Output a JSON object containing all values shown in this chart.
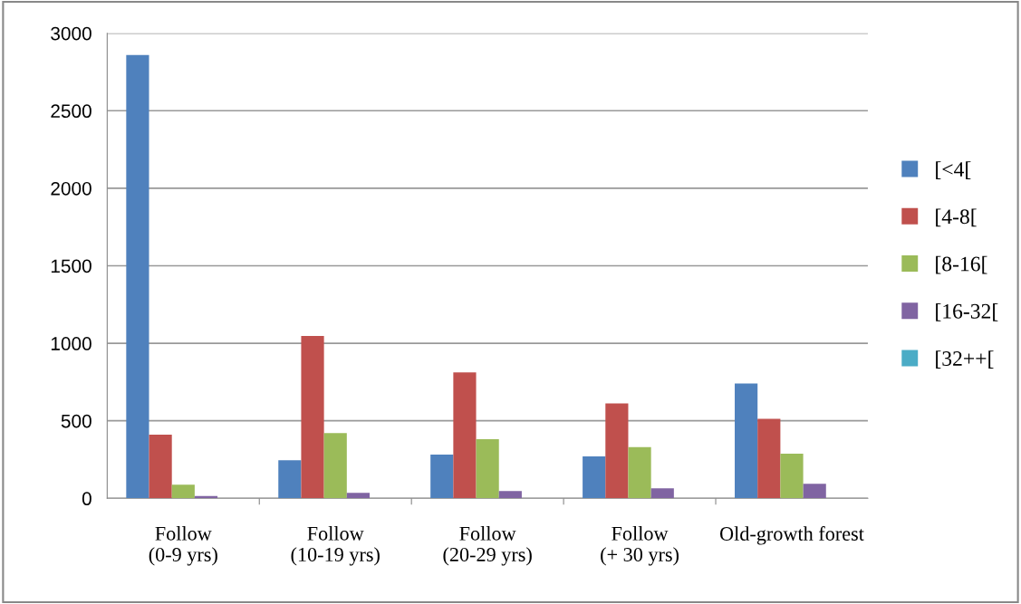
{
  "chart_data": {
    "type": "bar",
    "categories": [
      "Follow\n(0-9 yrs)",
      "Follow\n(10-19 yrs)",
      "Follow\n(20-29 yrs)",
      "Follow\n(+ 30 yrs)",
      "Old-growth forest"
    ],
    "series": [
      {
        "name": "[<4[",
        "color": "#4f81bd",
        "values": [
          2860,
          245,
          282,
          270,
          741
        ]
      },
      {
        "name": "[4-8[",
        "color": "#c0504d",
        "values": [
          410,
          1047,
          812,
          612,
          512
        ]
      },
      {
        "name": "[8-16[",
        "color": "#9bbb59",
        "values": [
          88,
          420,
          382,
          330,
          288
        ]
      },
      {
        "name": "[16-32[",
        "color": "#8064a2",
        "values": [
          15,
          35,
          47,
          65,
          94
        ]
      },
      {
        "name": "[32++[",
        "color": "#4bacc6",
        "values": [
          0,
          0,
          0,
          0,
          0
        ]
      }
    ],
    "ylim": [
      0,
      3000
    ],
    "yticks": [
      0,
      500,
      1000,
      1500,
      2000,
      2500,
      3000
    ],
    "grid": "y",
    "legend": "right"
  }
}
